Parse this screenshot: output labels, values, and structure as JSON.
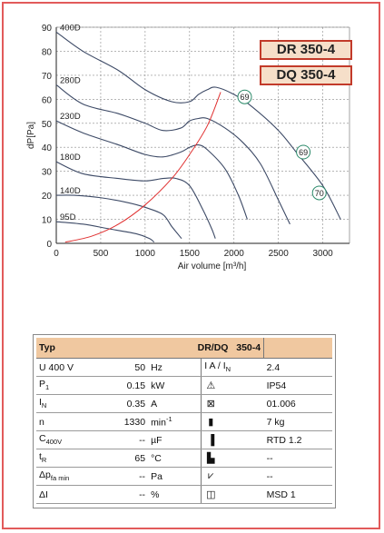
{
  "chart_data": {
    "type": "line",
    "xlabel": "Air volume [m³/h]",
    "ylabel": "dP[Pa]",
    "xlim": [
      0,
      3300
    ],
    "ylim": [
      0,
      90
    ],
    "x_ticks": [
      "0",
      "500",
      "1000",
      "1500",
      "2000",
      "2500",
      "3000"
    ],
    "y_ticks": [
      "0",
      "10",
      "20",
      "30",
      "40",
      "50",
      "60",
      "70",
      "80",
      "90"
    ],
    "grid": true,
    "series": [
      {
        "name": "400D",
        "x": [
          0,
          300,
          700,
          1000,
          1300,
          1500,
          1600,
          1700,
          1800,
          2000,
          2200,
          2500,
          2700,
          3000,
          3200
        ],
        "y": [
          88,
          80,
          72,
          64,
          59,
          59,
          62,
          64,
          65,
          62,
          57,
          47,
          38,
          24,
          10
        ]
      },
      {
        "name": "280D",
        "x": [
          0,
          300,
          700,
          1000,
          1200,
          1400,
          1500,
          1600,
          1700,
          1900,
          2100,
          2300,
          2500,
          2630
        ],
        "y": [
          66,
          58,
          54,
          50,
          47,
          48,
          51,
          52,
          52,
          48,
          42,
          33,
          18,
          8
        ]
      },
      {
        "name": "230D",
        "x": [
          0,
          300,
          700,
          1000,
          1200,
          1400,
          1500,
          1600,
          1700,
          1900,
          2050,
          2150
        ],
        "y": [
          51,
          46,
          41,
          37,
          36,
          38,
          40,
          41,
          39,
          31,
          20,
          10
        ]
      },
      {
        "name": "180D",
        "x": [
          0,
          300,
          700,
          1000,
          1200,
          1350,
          1500,
          1650,
          1750,
          1790
        ],
        "y": [
          34,
          29,
          27,
          26,
          27,
          27,
          24,
          14,
          6,
          2
        ]
      },
      {
        "name": "140D",
        "x": [
          0,
          200,
          500,
          800,
          1000,
          1200,
          1300,
          1410
        ],
        "y": [
          20,
          20,
          19,
          17,
          15,
          12,
          7,
          2
        ]
      },
      {
        "name": "95D",
        "x": [
          0,
          300,
          600,
          900,
          1050,
          1100
        ],
        "y": [
          9,
          8,
          6,
          4,
          2,
          0.5
        ]
      }
    ],
    "system_curve": {
      "x": [
        100,
        400,
        700,
        1000,
        1300,
        1500,
        1700,
        1850
      ],
      "y": [
        0.5,
        3,
        8,
        16,
        27,
        37,
        49,
        63
      ]
    },
    "noise_labels": [
      {
        "text": "69",
        "x": 2120,
        "y": 61
      },
      {
        "text": "69",
        "x": 2780,
        "y": 38
      },
      {
        "text": "70",
        "x": 2960,
        "y": 21
      }
    ]
  },
  "models": [
    "DR 350-4",
    "DQ 350-4"
  ],
  "specs": {
    "header": {
      "typ": "Typ",
      "model": "DR/DQ",
      "size": "350-4"
    },
    "rows": [
      {
        "param": "U",
        "sub": "",
        "extra": "400   V",
        "value": "50",
        "unit": "Hz",
        "sup": "",
        "icon": "I",
        "right_label": "A / I",
        "right_sub": "N",
        "right_value": "2.4"
      },
      {
        "param": "P",
        "sub": "1",
        "extra": "",
        "value": "0.15",
        "unit": "kW",
        "sup": "",
        "icon": "⚠",
        "right_label": "",
        "right_sub": "",
        "right_value": "IP54"
      },
      {
        "param": "I",
        "sub": "N",
        "extra": "",
        "value": "0.35",
        "unit": "A",
        "sup": "",
        "icon": "⊠",
        "right_label": "",
        "right_sub": "",
        "right_value": "01.006"
      },
      {
        "param": "n",
        "sub": "",
        "extra": "",
        "value": "1330",
        "unit": "min",
        "sup": "-1",
        "icon": "▮",
        "right_label": "",
        "right_sub": "",
        "right_value": "7 kg"
      },
      {
        "param": "C",
        "sub": "400V",
        "extra": "",
        "value": "--",
        "unit": "µF",
        "sup": "",
        "icon": "▐",
        "right_label": "",
        "right_sub": "",
        "right_value": "RTD 1.2"
      },
      {
        "param": "t",
        "sub": "R",
        "extra": "",
        "value": "65",
        "unit": "°C",
        "sup": "",
        "icon": "▙",
        "right_label": "",
        "right_sub": "",
        "right_value": "--"
      },
      {
        "param": "Δp",
        "sub": "fa min",
        "extra": "",
        "value": "--",
        "unit": "Pa",
        "sup": "",
        "icon": "⩗",
        "right_label": "",
        "right_sub": "",
        "right_value": "--"
      },
      {
        "param": "ΔI",
        "sub": "",
        "extra": "",
        "value": "--",
        "unit": "%",
        "sup": "",
        "icon": "◫",
        "right_label": "",
        "right_sub": "",
        "right_value": "MSD 1"
      }
    ]
  },
  "colors": {
    "curve": "#3d4a66",
    "system": "#e03030",
    "grid": "#8a8a8a",
    "noise": "#2c8a6a",
    "badge_bg": "#f6dfc9",
    "badge_border": "#c23a2a",
    "header_bg": "#f0c8a0",
    "frame": "#e25a5a"
  }
}
